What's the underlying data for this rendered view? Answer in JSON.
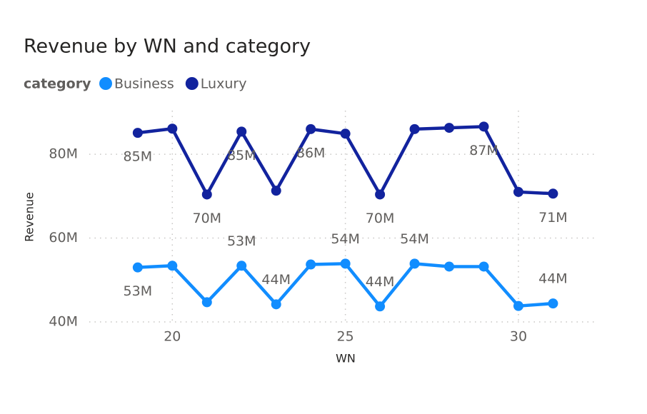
{
  "chart_data": {
    "type": "line",
    "title": "Revenue by WN and category",
    "legend_title": "category",
    "x_label": "WN",
    "y_label": "Revenue",
    "x": [
      19,
      20,
      21,
      22,
      23,
      24,
      25,
      26,
      27,
      28,
      29,
      30,
      31
    ],
    "series": [
      {
        "name": "Business",
        "color": "#118DFF",
        "values": [
          53.0,
          53.4,
          44.7,
          53.4,
          44.2,
          53.7,
          53.9,
          43.7,
          53.9,
          53.2,
          53.2,
          43.8,
          44.4
        ],
        "value_labels": [
          "53M",
          null,
          null,
          "53M",
          "44M",
          null,
          "54M",
          "44M",
          "54M",
          null,
          null,
          null,
          "44M"
        ]
      },
      {
        "name": "Luxury",
        "color": "#12239E",
        "values": [
          85.1,
          86.1,
          70.4,
          85.4,
          71.3,
          86.0,
          84.9,
          70.4,
          86.0,
          86.3,
          86.6,
          71.0,
          70.6
        ],
        "value_labels": [
          "85M",
          null,
          "70M",
          "85M",
          null,
          "86M",
          null,
          "70M",
          null,
          null,
          "87M",
          null,
          "71M"
        ]
      }
    ],
    "xlim": [
      17.6,
      32.25
    ],
    "ylim": [
      40,
      90.4
    ],
    "xticks": [
      20,
      25,
      30
    ],
    "yticks": [
      {
        "value": 40,
        "label": "40M"
      },
      {
        "value": 60,
        "label": "60M"
      },
      {
        "value": 80,
        "label": "80M"
      }
    ],
    "grid": true
  }
}
